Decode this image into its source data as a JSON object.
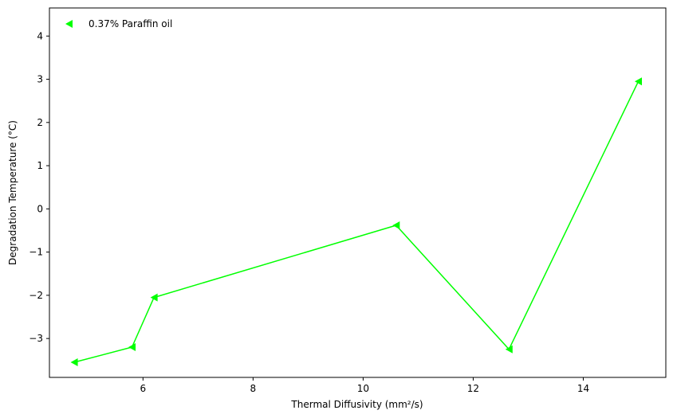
{
  "chart_data": {
    "type": "line",
    "xlabel": "Thermal Diffusivity (mm²/s)",
    "ylabel": "Degradation Temperature (°C)",
    "xlim": [
      4.3,
      15.5
    ],
    "ylim": [
      -3.9,
      4.65
    ],
    "xticks": [
      6,
      8,
      10,
      12,
      14
    ],
    "yticks": [
      -3,
      -2,
      -1,
      0,
      1,
      2,
      3,
      4
    ],
    "grid": false,
    "legend_position": "upper-left",
    "series": [
      {
        "name": "0.37% Paraffin oil",
        "color": "#00ff00",
        "marker": "triangle-left",
        "x": [
          4.75,
          5.8,
          6.2,
          10.6,
          12.65,
          15.0
        ],
        "y": [
          -3.55,
          -3.2,
          -2.05,
          -0.38,
          -3.25,
          2.95
        ]
      }
    ]
  }
}
